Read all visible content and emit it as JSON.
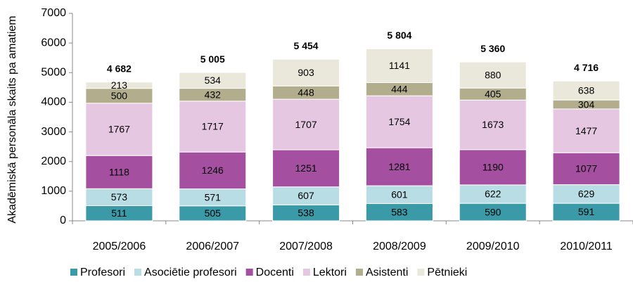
{
  "chart_data": {
    "type": "stacked_bar",
    "y_label": "Akadēmiskā personāla skaits pa amatiem",
    "categories": [
      "2005/2006",
      "2006/2007",
      "2007/2008",
      "2008/2009",
      "2009/2010",
      "2010/2011"
    ],
    "series": [
      {
        "name": "Profesori",
        "color": "#3a9aa8",
        "values": [
          511,
          505,
          538,
          583,
          590,
          591
        ]
      },
      {
        "name": "Asociētie profesori",
        "color": "#b9dde5",
        "values": [
          573,
          571,
          607,
          601,
          622,
          629
        ]
      },
      {
        "name": "Docenti",
        "color": "#a44fa0",
        "values": [
          1118,
          1246,
          1251,
          1281,
          1190,
          1077
        ]
      },
      {
        "name": "Lektori",
        "color": "#e6c7e2",
        "values": [
          1767,
          1717,
          1707,
          1754,
          1673,
          1477
        ]
      },
      {
        "name": "Asistenti",
        "color": "#b2ad8d",
        "values": [
          500,
          432,
          448,
          444,
          405,
          304
        ]
      },
      {
        "name": "Pētnieki",
        "color": "#eae7db",
        "values": [
          213,
          534,
          903,
          1141,
          880,
          638
        ]
      }
    ],
    "total_labels": [
      "4 682",
      "5 005",
      "5 454",
      "5 804",
      "5 360",
      "4 716"
    ],
    "ylim": [
      0,
      7000
    ],
    "yticks": [
      0,
      1000,
      2000,
      3000,
      4000,
      5000,
      6000,
      7000
    ],
    "grid": false
  }
}
